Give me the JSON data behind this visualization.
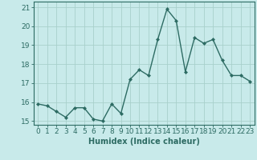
{
  "x": [
    0,
    1,
    2,
    3,
    4,
    5,
    6,
    7,
    8,
    9,
    10,
    11,
    12,
    13,
    14,
    15,
    16,
    17,
    18,
    19,
    20,
    21,
    22,
    23
  ],
  "y": [
    15.9,
    15.8,
    15.5,
    15.2,
    15.7,
    15.7,
    15.1,
    15.0,
    15.9,
    15.4,
    17.2,
    17.7,
    17.4,
    19.3,
    20.9,
    20.3,
    17.6,
    19.4,
    19.1,
    19.3,
    18.2,
    17.4,
    17.4,
    17.1
  ],
  "xlabel": "Humidex (Indice chaleur)",
  "ylim": [
    14.8,
    21.3
  ],
  "xlim": [
    -0.5,
    23.5
  ],
  "yticks": [
    15,
    16,
    17,
    18,
    19,
    20,
    21
  ],
  "xticks": [
    0,
    1,
    2,
    3,
    4,
    5,
    6,
    7,
    8,
    9,
    10,
    11,
    12,
    13,
    14,
    15,
    16,
    17,
    18,
    19,
    20,
    21,
    22,
    23
  ],
  "xtick_labels": [
    "0",
    "1",
    "2",
    "3",
    "4",
    "5",
    "6",
    "7",
    "8",
    "9",
    "10",
    "11",
    "12",
    "13",
    "14",
    "15",
    "16",
    "17",
    "18",
    "19",
    "20",
    "21",
    "22",
    "23"
  ],
  "line_color": "#2d6b63",
  "marker": "D",
  "marker_size": 2.0,
  "bg_color": "#c8eaea",
  "grid_color": "#a8d0cc",
  "xlabel_fontsize": 7,
  "tick_fontsize": 6.5,
  "line_width": 1.0
}
